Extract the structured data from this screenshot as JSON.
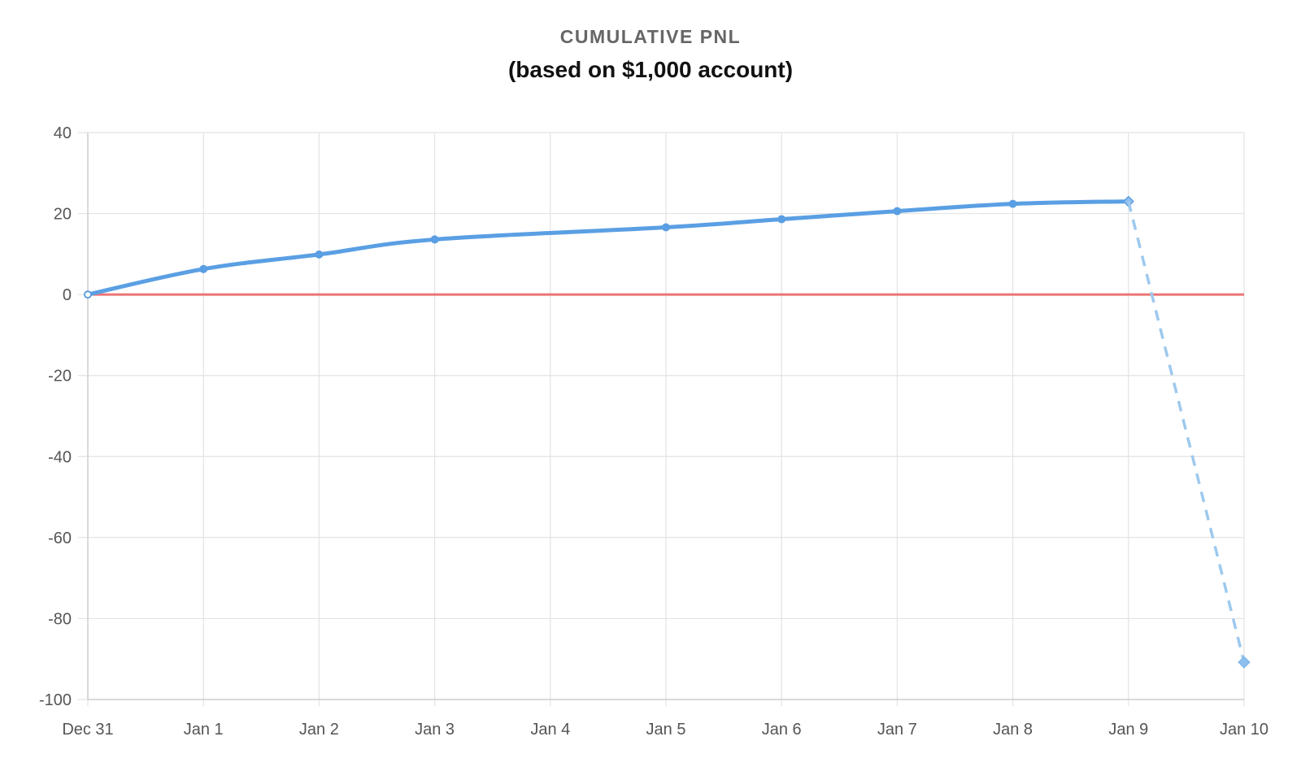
{
  "chart_data": {
    "type": "line",
    "title": "CUMULATIVE PNL",
    "subtitle": "(based on $1,000 account)",
    "categories": [
      "Dec 31",
      "Jan 1",
      "Jan 2",
      "Jan 3",
      "Jan 4",
      "Jan 5",
      "Jan 6",
      "Jan 7",
      "Jan 8",
      "Jan 9",
      "Jan 10"
    ],
    "ylim": [
      -100,
      40
    ],
    "yticks": [
      40,
      20,
      0,
      -20,
      -40,
      -60,
      -80,
      -100
    ],
    "grid": true,
    "series": [
      {
        "style": "solid",
        "color": "#5a9fe3",
        "points": [
          {
            "x": "Dec 31",
            "y": 0
          },
          {
            "x": "Jan 1",
            "y": 6.3
          },
          {
            "x": "Jan 2",
            "y": 9.9
          },
          {
            "x": "Jan 3",
            "y": 13.6
          },
          {
            "x": "Jan 5",
            "y": 16.6
          },
          {
            "x": "Jan 6",
            "y": 18.6
          },
          {
            "x": "Jan 7",
            "y": 20.6
          },
          {
            "x": "Jan 8",
            "y": 22.4
          },
          {
            "x": "Jan 9",
            "y": 23.0
          }
        ]
      },
      {
        "style": "dashed",
        "color": "#9dc9ee",
        "points": [
          {
            "x": "Jan 9",
            "y": 23.0
          },
          {
            "x": "Jan 10",
            "y": -90.8
          }
        ]
      }
    ],
    "reference_line": {
      "y": 0,
      "color": "#ec7474"
    },
    "colors": {
      "title": "#666666",
      "grid": "#e3e3e3",
      "axis": "#cfcfcf"
    }
  }
}
